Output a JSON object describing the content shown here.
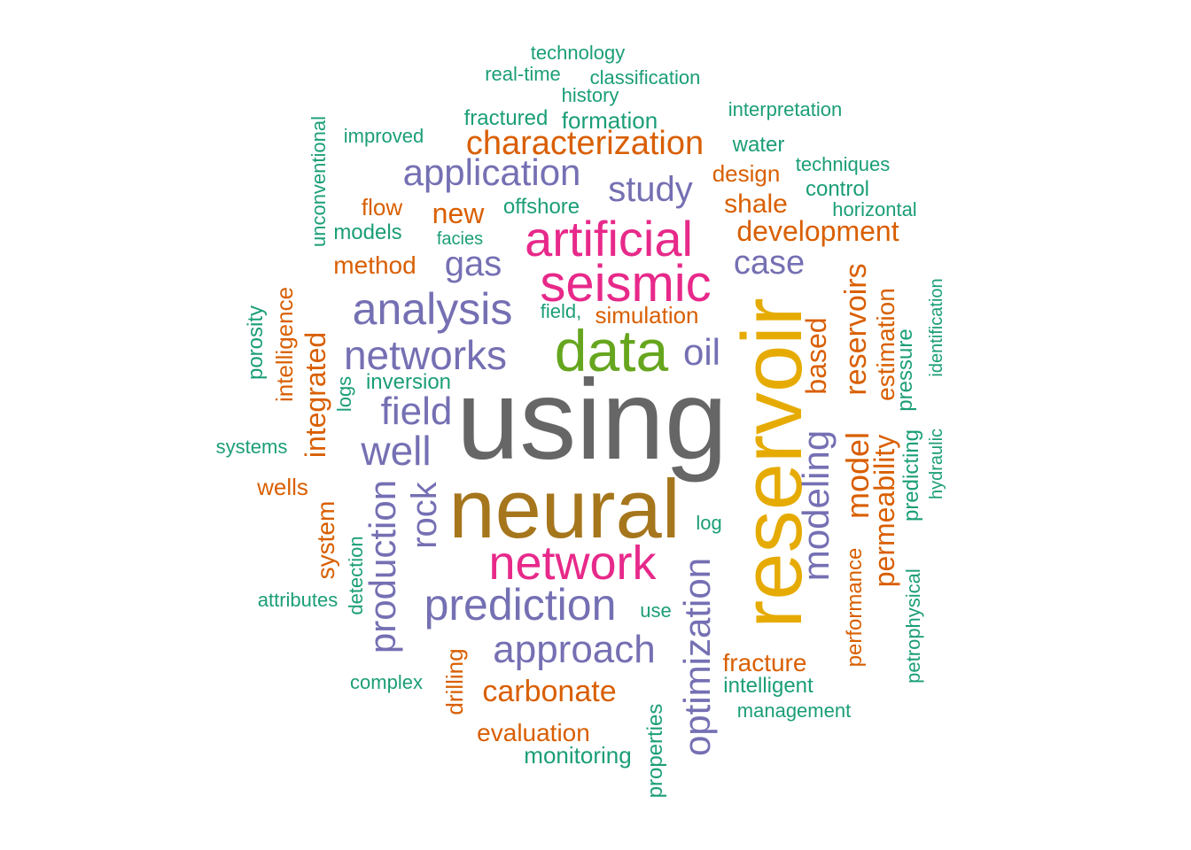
{
  "palette": {
    "teal": "#1b9e77",
    "orange": "#d95f02",
    "purple": "#7570b3",
    "magenta": "#e7298a",
    "green": "#66a61e",
    "gold": "#e6ab02",
    "brown": "#a6761d",
    "gray": "#666666"
  },
  "words": {
    "using": "using",
    "neural": "neural",
    "reservoir": "reservoir",
    "data": "data",
    "seismic": "seismic",
    "artificial": "artificial",
    "network": "network",
    "prediction": "prediction",
    "analysis": "analysis",
    "networks": "networks",
    "approach": "approach",
    "application": "application",
    "production": "production",
    "optimization": "optimization",
    "modeling": "modeling",
    "well": "well",
    "field": "field",
    "study": "study",
    "gas": "gas",
    "case": "case",
    "oil": "oil",
    "rock": "rock",
    "characterization": "characterization",
    "carbonate": "carbonate",
    "model": "model",
    "reservoirs": "reservoirs",
    "permeability": "permeability",
    "integrated": "integrated",
    "based": "based",
    "development": "development",
    "new": "new",
    "shale": "shale",
    "method": "method",
    "system": "system",
    "estimation": "estimation",
    "evaluation": "evaluation",
    "fracture": "fracture",
    "drilling": "drilling",
    "simulation": "simulation",
    "performance": "performance",
    "offshore": "offshore",
    "design": "design",
    "flow": "flow",
    "wells": "wells",
    "intelligence": "intelligence",
    "monitoring": "monitoring",
    "formation": "formation",
    "fractured": "fractured",
    "inversion": "inversion",
    "intelligent": "intelligent",
    "properties": "properties",
    "pressure": "pressure",
    "predicting": "predicting",
    "models": "models",
    "control": "control",
    "water": "water",
    "porosity": "porosity",
    "technology": "technology",
    "real_time": "real-time",
    "classification": "classification",
    "history": "history",
    "interpretation": "interpretation",
    "improved": "improved",
    "unconventional": "unconventional",
    "techniques": "techniques",
    "horizontal": "horizontal",
    "facies": "facies",
    "field_comma": "field,",
    "logs": "logs",
    "systems": "systems",
    "attributes": "attributes",
    "detection": "detection",
    "log": "log",
    "use": "use",
    "complex": "complex",
    "management": "management",
    "petrophysical": "petrophysical",
    "identification": "identification",
    "hydraulic": "hydraulic"
  }
}
